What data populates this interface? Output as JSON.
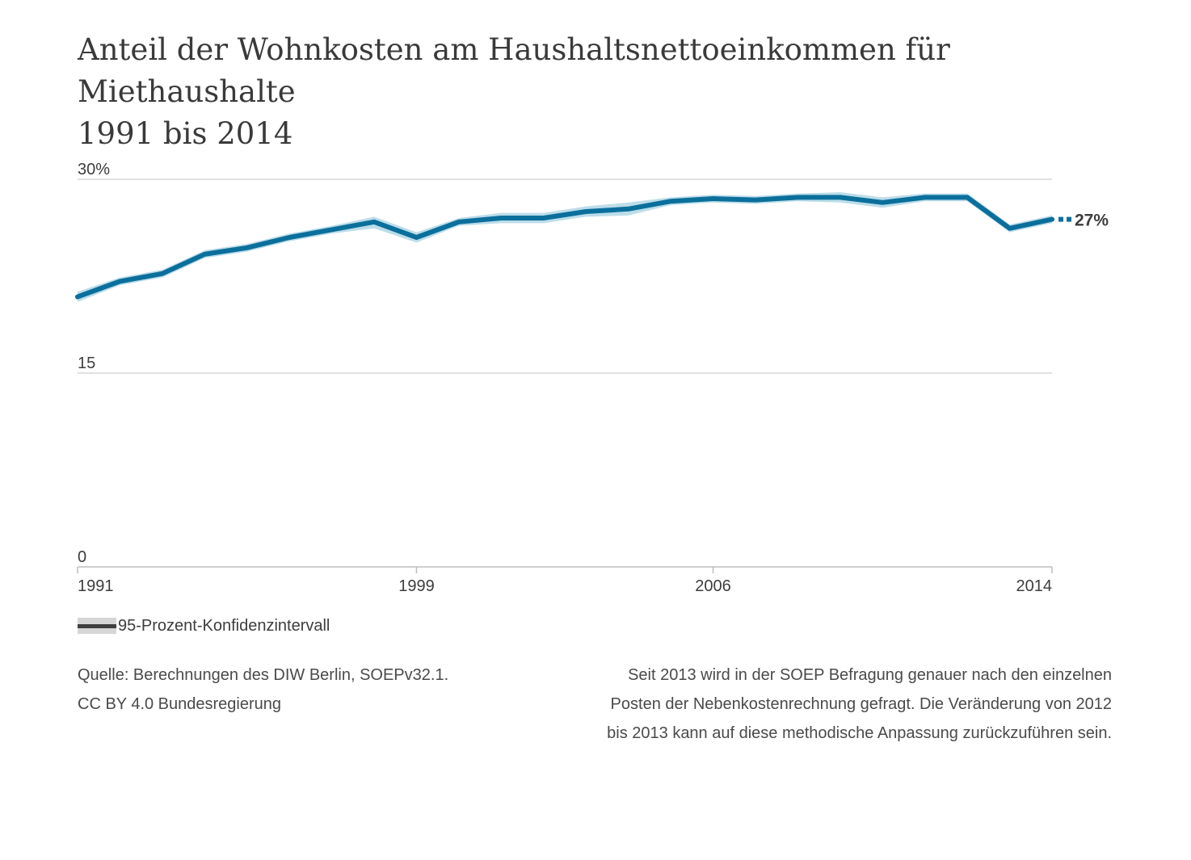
{
  "title": {
    "line1": "Anteil der Wohnkosten am Haushaltsnettoeinkommen für Miethaushalte",
    "line2": "1991 bis 2014"
  },
  "colors": {
    "line": "#0b6f9c",
    "band": "#bcdde9",
    "grid": "#cfcfcf",
    "axis": "#bdbdbd",
    "text": "#3d3d3d"
  },
  "legend": {
    "label": "95-Prozent-Konfidenzintervall"
  },
  "source": {
    "line1": "Quelle: Berechnungen des DIW Berlin, SOEPv32.1.",
    "line2": "CC BY 4.0 Bundesregierung"
  },
  "note": "Seit 2013 wird in der SOEP Befragung genauer nach den einzelnen Posten der Nebenkostenrechnung gefragt. Die Veränderung von 2012 bis 2013 kann auf diese methodische Anpassung zurückzuführen sein.",
  "chart_data": {
    "type": "line",
    "title": "Anteil der Wohnkosten am Haushaltsnettoeinkommen für Miethaushalte 1991 bis 2014",
    "xlabel": "",
    "ylabel": "",
    "x": [
      1991,
      1992,
      1993,
      1994,
      1995,
      1996,
      1997,
      1998,
      1999,
      2000,
      2001,
      2002,
      2003,
      2004,
      2005,
      2006,
      2007,
      2008,
      2009,
      2010,
      2011,
      2012,
      2013,
      2014
    ],
    "ylim": [
      0,
      30
    ],
    "xlim": [
      1991,
      2014
    ],
    "y_ticks": [
      {
        "value": 30,
        "label": "30%"
      },
      {
        "value": 15,
        "label": "15"
      },
      {
        "value": 0,
        "label": "0"
      }
    ],
    "x_ticks": [
      {
        "value": 1991,
        "label": "1991"
      },
      {
        "value": 1999,
        "label": "1999"
      },
      {
        "value": 2006,
        "label": "2006"
      },
      {
        "value": 2014,
        "label": "2014"
      }
    ],
    "series": [
      {
        "values": [
          20.9,
          22.1,
          22.7,
          24.2,
          24.7,
          25.5,
          26.1,
          26.7,
          25.5,
          26.7,
          27.0,
          27.0,
          27.5,
          27.7,
          28.3,
          28.5,
          28.4,
          28.6,
          28.6,
          28.2,
          28.6,
          28.6,
          26.2,
          26.9
        ],
        "ci_lower": [
          20.5,
          21.8,
          22.4,
          23.9,
          24.4,
          25.2,
          25.8,
          26.2,
          25.1,
          26.4,
          26.6,
          26.6,
          27.1,
          27.2,
          28.0,
          28.2,
          28.1,
          28.3,
          28.2,
          27.8,
          28.3,
          28.3,
          25.9,
          26.6
        ],
        "ci_upper": [
          21.3,
          22.4,
          23.0,
          24.5,
          25.0,
          25.8,
          26.4,
          27.1,
          25.9,
          27.0,
          27.4,
          27.4,
          27.9,
          28.2,
          28.6,
          28.8,
          28.7,
          28.9,
          29.0,
          28.6,
          28.9,
          28.9,
          26.5,
          27.2
        ]
      }
    ],
    "end_label": "27%",
    "grid": true,
    "legend_position": "bottom-left"
  }
}
